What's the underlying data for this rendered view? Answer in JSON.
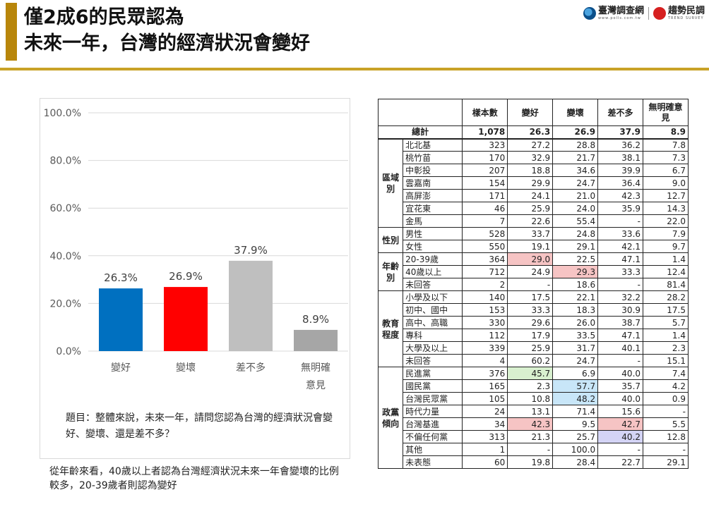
{
  "header": {
    "title_line1": "僅2成6的民眾認為",
    "title_line2": "未來一年，台灣的經濟狀況會變好",
    "logo1_text": "臺灣調查網",
    "logo1_sub": "www.polls.com.tw",
    "logo2_text": "趨勢民調",
    "logo2_sub": "TREND SURVEY"
  },
  "chart_data": {
    "type": "bar",
    "categories": [
      "變好",
      "變壞",
      "差不多",
      "無明確意見"
    ],
    "category_lines": [
      [
        "變好"
      ],
      [
        "變壞"
      ],
      [
        "差不多"
      ],
      [
        "無明確",
        "意見"
      ]
    ],
    "values": [
      26.3,
      26.9,
      37.9,
      8.9
    ],
    "data_labels": [
      "26.3%",
      "26.9%",
      "37.9%",
      "8.9%"
    ],
    "colors": [
      "#0070c0",
      "#ff0000",
      "#bfbfbf",
      "#a6a6a6"
    ],
    "yticks": [
      "0.0%",
      "20.0%",
      "40.0%",
      "60.0%",
      "80.0%",
      "100.0%"
    ],
    "ylim": [
      0,
      100
    ],
    "grid": true,
    "title": "",
    "xlabel": "",
    "ylabel": ""
  },
  "question": "題目：整體來說，未來一年，請問您認為台灣的經濟狀況會變好、變壞、還是差不多？",
  "note": "從年齡來看，40歲以上者認為台灣經濟狀況未來一年會變壞的比例較多，20-39歲者則認為變好",
  "table": {
    "headers": [
      "樣本數",
      "變好",
      "變壞",
      "差不多",
      "無明確意見"
    ],
    "total": {
      "label": "總計",
      "values": [
        "1,078",
        "26.3",
        "26.9",
        "37.9",
        "8.9"
      ]
    },
    "groups": [
      {
        "name": "區域別",
        "rows": [
          {
            "label": "北北基",
            "values": [
              "323",
              "27.2",
              "28.8",
              "36.2",
              "7.8"
            ],
            "hl": [
              "",
              "",
              "",
              "",
              ""
            ]
          },
          {
            "label": "桃竹苗",
            "values": [
              "170",
              "32.9",
              "21.7",
              "38.1",
              "7.3"
            ],
            "hl": [
              "",
              "",
              "",
              "",
              ""
            ]
          },
          {
            "label": "中彰投",
            "values": [
              "207",
              "18.8",
              "34.6",
              "39.9",
              "6.7"
            ],
            "hl": [
              "",
              "",
              "",
              "",
              ""
            ]
          },
          {
            "label": "雲嘉南",
            "values": [
              "154",
              "29.9",
              "24.7",
              "36.4",
              "9.0"
            ],
            "hl": [
              "",
              "",
              "",
              "",
              ""
            ]
          },
          {
            "label": "高屏澎",
            "values": [
              "171",
              "24.1",
              "21.0",
              "42.3",
              "12.7"
            ],
            "hl": [
              "",
              "",
              "",
              "",
              ""
            ]
          },
          {
            "label": "宜花東",
            "values": [
              "46",
              "25.9",
              "24.0",
              "35.9",
              "14.3"
            ],
            "hl": [
              "",
              "",
              "",
              "",
              ""
            ]
          },
          {
            "label": "金馬",
            "values": [
              "7",
              "22.6",
              "55.4",
              "-",
              "22.0"
            ],
            "hl": [
              "",
              "",
              "",
              "",
              ""
            ]
          }
        ]
      },
      {
        "name": "性別",
        "rows": [
          {
            "label": "男性",
            "values": [
              "528",
              "33.7",
              "24.8",
              "33.6",
              "7.9"
            ],
            "hl": [
              "",
              "",
              "",
              "",
              ""
            ]
          },
          {
            "label": "女性",
            "values": [
              "550",
              "19.1",
              "29.1",
              "42.1",
              "9.7"
            ],
            "hl": [
              "",
              "",
              "",
              "",
              ""
            ]
          }
        ]
      },
      {
        "name": "年齡別",
        "rows": [
          {
            "label": "20-39歲",
            "values": [
              "364",
              "29.0",
              "22.5",
              "47.1",
              "1.4"
            ],
            "hl": [
              "",
              "red",
              "",
              "",
              ""
            ]
          },
          {
            "label": "40歲以上",
            "values": [
              "712",
              "24.9",
              "29.3",
              "33.3",
              "12.4"
            ],
            "hl": [
              "",
              "",
              "red",
              "",
              ""
            ]
          },
          {
            "label": "未回答",
            "values": [
              "2",
              "-",
              "18.6",
              "-",
              "81.4"
            ],
            "hl": [
              "",
              "",
              "",
              "",
              ""
            ]
          }
        ]
      },
      {
        "name": "教育程度",
        "rows": [
          {
            "label": "小學及以下",
            "values": [
              "140",
              "17.5",
              "22.1",
              "32.2",
              "28.2"
            ],
            "hl": [
              "",
              "",
              "",
              "",
              ""
            ]
          },
          {
            "label": "初中、國中",
            "values": [
              "153",
              "33.3",
              "18.3",
              "30.9",
              "17.5"
            ],
            "hl": [
              "",
              "",
              "",
              "",
              ""
            ]
          },
          {
            "label": "高中、高職",
            "values": [
              "330",
              "29.6",
              "26.0",
              "38.7",
              "5.7"
            ],
            "hl": [
              "",
              "",
              "",
              "",
              ""
            ]
          },
          {
            "label": "專科",
            "values": [
              "112",
              "17.9",
              "33.5",
              "47.1",
              "1.4"
            ],
            "hl": [
              "",
              "",
              "",
              "",
              ""
            ]
          },
          {
            "label": "大學及以上",
            "values": [
              "339",
              "25.9",
              "31.7",
              "40.1",
              "2.3"
            ],
            "hl": [
              "",
              "",
              "",
              "",
              ""
            ]
          },
          {
            "label": "未回答",
            "values": [
              "4",
              "60.2",
              "24.7",
              "-",
              "15.1"
            ],
            "hl": [
              "",
              "",
              "",
              "",
              ""
            ]
          }
        ]
      },
      {
        "name": "政黨傾向",
        "rows": [
          {
            "label": "民進黨",
            "values": [
              "376",
              "45.7",
              "6.9",
              "40.0",
              "7.4"
            ],
            "hl": [
              "",
              "green",
              "",
              "",
              ""
            ]
          },
          {
            "label": "國民黨",
            "values": [
              "165",
              "2.3",
              "57.7",
              "35.7",
              "4.2"
            ],
            "hl": [
              "",
              "",
              "blue",
              "",
              ""
            ]
          },
          {
            "label": "台灣民眾黨",
            "values": [
              "105",
              "10.8",
              "48.2",
              "40.0",
              "0.9"
            ],
            "hl": [
              "",
              "",
              "blue",
              "",
              ""
            ]
          },
          {
            "label": "時代力量",
            "values": [
              "24",
              "13.1",
              "71.4",
              "15.6",
              "-"
            ],
            "hl": [
              "",
              "",
              "",
              "",
              ""
            ]
          },
          {
            "label": "台灣基進",
            "values": [
              "34",
              "42.3",
              "9.5",
              "42.7",
              "5.5"
            ],
            "hl": [
              "",
              "red",
              "",
              "red",
              ""
            ]
          },
          {
            "label": "不偏任何黨",
            "values": [
              "313",
              "21.3",
              "25.7",
              "40.2",
              "12.8"
            ],
            "hl": [
              "",
              "",
              "",
              "purple",
              ""
            ]
          },
          {
            "label": "其他",
            "values": [
              "1",
              "-",
              "100.0",
              "-",
              "-"
            ],
            "hl": [
              "",
              "",
              "",
              "",
              ""
            ]
          },
          {
            "label": "未表態",
            "values": [
              "60",
              "19.8",
              "28.4",
              "22.7",
              "29.1"
            ],
            "hl": [
              "",
              "",
              "",
              "",
              ""
            ]
          }
        ]
      }
    ]
  }
}
